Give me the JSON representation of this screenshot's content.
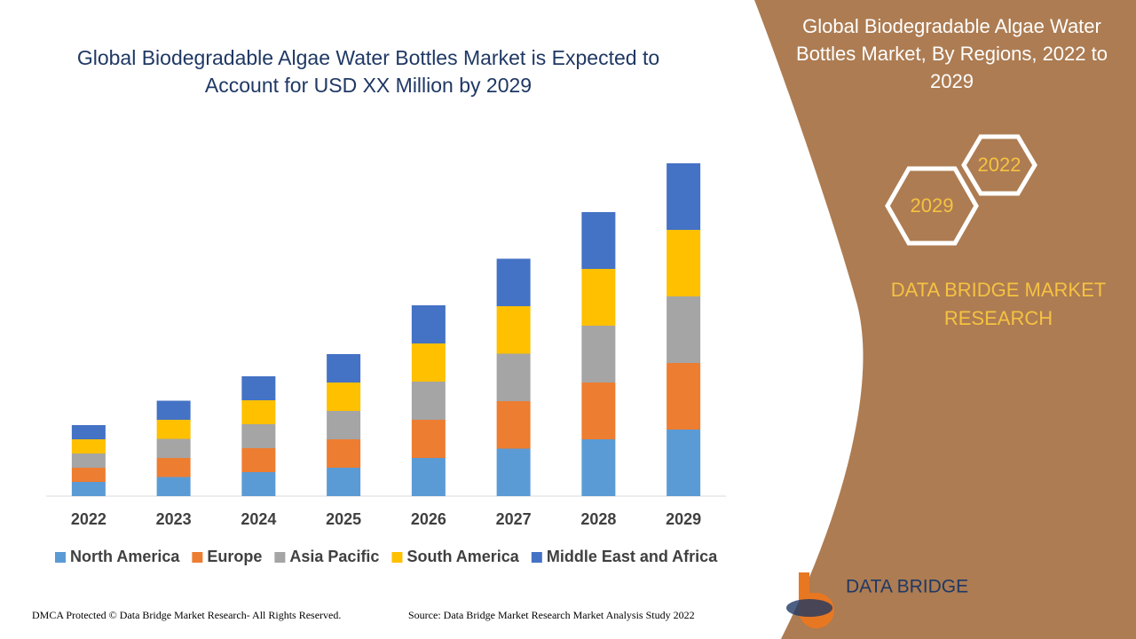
{
  "chart_data": {
    "type": "stacked_bar",
    "title": "Global Biodegradable Algae Water Bottles Market is Expected to Account for USD XX Million by 2029",
    "categories": [
      "2022",
      "2023",
      "2024",
      "2025",
      "2026",
      "2027",
      "2028",
      "2029"
    ],
    "series": [
      {
        "name": "North America",
        "color": "#5b9bd5",
        "values": [
          1.6,
          2.15,
          2.7,
          3.2,
          4.3,
          5.35,
          6.4,
          7.5
        ]
      },
      {
        "name": "Europe",
        "color": "#ed7d31",
        "values": [
          1.6,
          2.15,
          2.7,
          3.2,
          4.3,
          5.35,
          6.4,
          7.5
        ]
      },
      {
        "name": "Asia Pacific",
        "color": "#a5a5a5",
        "values": [
          1.6,
          2.15,
          2.7,
          3.2,
          4.3,
          5.35,
          6.4,
          7.5
        ]
      },
      {
        "name": "South America",
        "color": "#ffc000",
        "values": [
          1.6,
          2.15,
          2.7,
          3.2,
          4.3,
          5.35,
          6.4,
          7.5
        ]
      },
      {
        "name": "Middle East and Africa",
        "color": "#4472c4",
        "values": [
          1.6,
          2.15,
          2.7,
          3.2,
          4.3,
          5.35,
          6.4,
          7.5
        ]
      }
    ],
    "legend": "bottom"
  },
  "side_panel": {
    "title": "Global Biodegradable Algae Water Bottles Market, By Regions, 2022 to 2029",
    "hexagons": [
      "2022",
      "2029"
    ],
    "brand": "DATA BRIDGE MARKET RESEARCH"
  },
  "logo": {
    "text": "DATA BRIDGE"
  },
  "footer": {
    "left": "DMCA Protected © Data Bridge Market Research- All Rights Reserved.",
    "right": "Source: Data Bridge Market Research Market Analysis Study 2022"
  }
}
